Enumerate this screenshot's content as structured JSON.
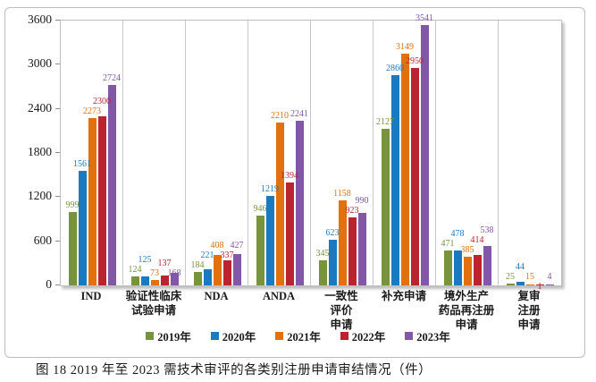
{
  "figure": {
    "caption": "图 18 2019 年至 2023 需技术审评的各类别注册申请审结情况（件）"
  },
  "chart_data": {
    "type": "bar",
    "title": "图 18 2019 年至 2023 需技术审评的各类别注册申请审结情况（件）",
    "xlabel": "",
    "ylabel": "",
    "ylim": [
      0,
      3600
    ],
    "yticks": [
      0,
      600,
      1200,
      1800,
      2400,
      3000,
      3600
    ],
    "grid": "vertical-category-separators",
    "legend_position": "bottom",
    "categories": [
      "IND",
      "验证性临床\n试验申请",
      "NDA",
      "ANDA",
      "一致性\n评价\n申请",
      "补充申请",
      "境外生产\n药品再注册\n申请",
      "复审\n注册\n申请"
    ],
    "series": [
      {
        "name": "2019年",
        "color": "#77933C",
        "values": [
          999,
          124,
          184,
          946,
          345,
          2127,
          471,
          25
        ]
      },
      {
        "name": "2020年",
        "color": "#1B79C0",
        "values": [
          1561,
          125,
          221,
          1219,
          623,
          2860,
          478,
          44
        ]
      },
      {
        "name": "2021年",
        "color": "#E2700C",
        "values": [
          2273,
          73,
          408,
          2210,
          1158,
          3149,
          385,
          15
        ]
      },
      {
        "name": "2022年",
        "color": "#B9242F",
        "values": [
          2300,
          137,
          337,
          1394,
          923,
          2950,
          414,
          1
        ]
      },
      {
        "name": "2023年",
        "color": "#8257A8",
        "values": [
          2724,
          168,
          427,
          2241,
          990,
          3541,
          538,
          4
        ]
      }
    ]
  }
}
